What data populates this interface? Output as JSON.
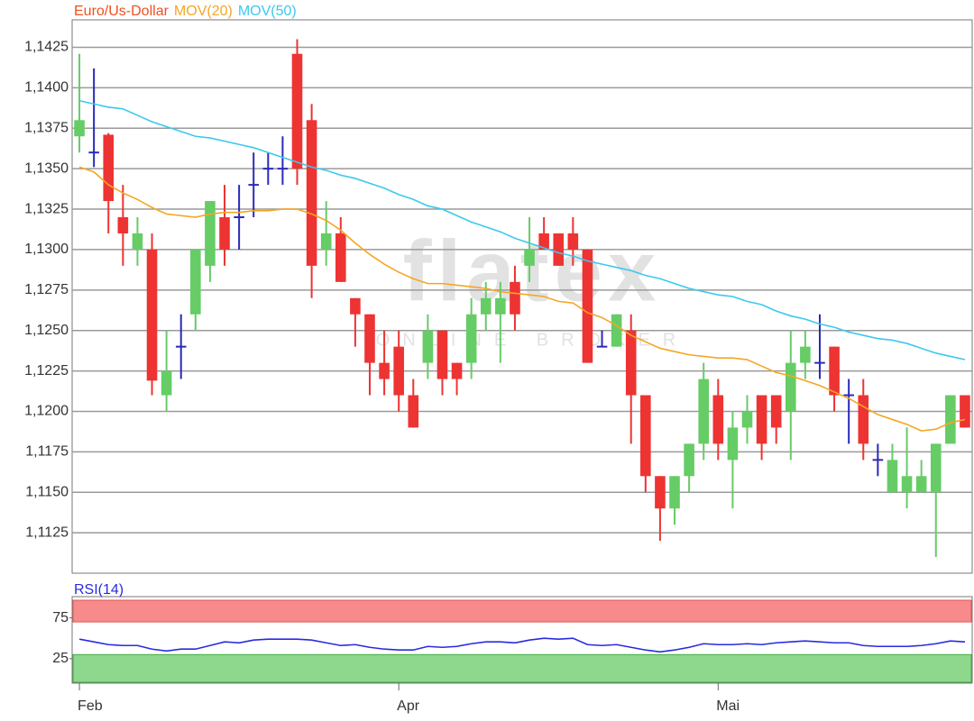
{
  "chart_data": [
    {
      "type": "candlestick",
      "categories": [
        "Feb",
        null,
        null,
        null,
        null,
        null,
        null,
        null,
        null,
        null,
        null,
        null,
        null,
        null,
        null,
        null,
        null,
        null,
        null,
        null,
        null,
        null,
        "Apr",
        null,
        null,
        null,
        null,
        null,
        null,
        null,
        null,
        null,
        null,
        null,
        null,
        null,
        null,
        null,
        null,
        null,
        null,
        null,
        null,
        null,
        "Mai",
        null,
        null,
        null,
        null,
        null,
        null,
        null,
        null,
        null,
        null,
        null,
        null,
        null,
        null,
        null,
        null,
        null
      ],
      "ohlc": {
        "name": "Euro/Us-Dollar",
        "color": "#f0501e",
        "up_color": "#66cc66",
        "down_color": "#ee3333",
        "doji_color": "#2a2ab8",
        "open": [
          1.137,
          1.136,
          1.1371,
          1.132,
          1.13,
          1.13,
          1.121,
          1.124,
          1.126,
          1.129,
          1.132,
          1.132,
          1.134,
          1.135,
          1.135,
          1.1421,
          1.138,
          1.13,
          1.131,
          1.127,
          1.126,
          1.123,
          1.124,
          1.121,
          1.123,
          1.125,
          1.123,
          1.123,
          1.126,
          1.126,
          1.128,
          1.129,
          1.131,
          1.131,
          1.131,
          1.13,
          1.124,
          1.124,
          1.125,
          1.121,
          1.116,
          1.114,
          1.116,
          1.118,
          1.121,
          1.117,
          1.119,
          1.121,
          1.121,
          1.12,
          1.123,
          1.123,
          1.124,
          1.121,
          1.121,
          1.117,
          1.115,
          1.115,
          1.115,
          1.115,
          1.118,
          1.121
        ],
        "high": [
          1.1421,
          1.1412,
          1.1372,
          1.134,
          1.132,
          1.131,
          1.125,
          1.126,
          1.13,
          1.133,
          1.134,
          1.134,
          1.136,
          1.136,
          1.137,
          1.143,
          1.139,
          1.133,
          1.132,
          1.127,
          1.126,
          1.125,
          1.125,
          1.122,
          1.126,
          1.125,
          1.123,
          1.127,
          1.128,
          1.128,
          1.129,
          1.132,
          1.132,
          1.131,
          1.132,
          1.13,
          1.125,
          1.126,
          1.126,
          1.121,
          1.116,
          1.116,
          1.118,
          1.123,
          1.122,
          1.12,
          1.121,
          1.121,
          1.121,
          1.125,
          1.125,
          1.126,
          1.124,
          1.122,
          1.122,
          1.118,
          1.118,
          1.119,
          1.117,
          1.118,
          1.121,
          1.121
        ],
        "low": [
          1.136,
          1.1351,
          1.131,
          1.129,
          1.129,
          1.121,
          1.12,
          1.122,
          1.125,
          1.128,
          1.129,
          1.13,
          1.132,
          1.134,
          1.134,
          1.134,
          1.127,
          1.129,
          1.128,
          1.124,
          1.121,
          1.121,
          1.12,
          1.119,
          1.122,
          1.121,
          1.121,
          1.122,
          1.125,
          1.123,
          1.125,
          1.128,
          1.13,
          1.129,
          1.129,
          1.123,
          1.124,
          1.124,
          1.118,
          1.115,
          1.112,
          1.113,
          1.115,
          1.117,
          1.117,
          1.114,
          1.118,
          1.117,
          1.118,
          1.117,
          1.122,
          1.122,
          1.12,
          1.118,
          1.117,
          1.116,
          1.115,
          1.114,
          1.115,
          1.111,
          1.118,
          1.119
        ],
        "close": [
          1.138,
          1.136,
          1.133,
          1.131,
          1.131,
          1.1219,
          1.1225,
          1.124,
          1.13,
          1.133,
          1.13,
          1.132,
          1.134,
          1.135,
          1.135,
          1.135,
          1.129,
          1.131,
          1.128,
          1.126,
          1.123,
          1.122,
          1.121,
          1.119,
          1.125,
          1.122,
          1.122,
          1.126,
          1.127,
          1.127,
          1.126,
          1.13,
          1.13,
          1.129,
          1.13,
          1.123,
          1.124,
          1.126,
          1.121,
          1.116,
          1.114,
          1.116,
          1.118,
          1.122,
          1.118,
          1.119,
          1.12,
          1.118,
          1.119,
          1.123,
          1.124,
          1.123,
          1.121,
          1.121,
          1.118,
          1.117,
          1.117,
          1.116,
          1.116,
          1.118,
          1.121,
          1.119
        ]
      },
      "series": [
        {
          "name": "MOV(20)",
          "color": "#f5a623",
          "values": [
            1.1351,
            1.1348,
            1.134,
            1.1335,
            1.1331,
            1.1326,
            1.1322,
            1.1321,
            1.132,
            1.1322,
            1.1323,
            1.1323,
            1.1324,
            1.1324,
            1.1325,
            1.1325,
            1.1322,
            1.1318,
            1.1312,
            1.1304,
            1.1297,
            1.1291,
            1.1286,
            1.1282,
            1.1279,
            1.1279,
            1.1278,
            1.1277,
            1.1276,
            1.1274,
            1.1273,
            1.1272,
            1.1271,
            1.1268,
            1.1267,
            1.1261,
            1.1258,
            1.1253,
            1.1247,
            1.1243,
            1.1239,
            1.1237,
            1.1235,
            1.1234,
            1.1233,
            1.1233,
            1.1232,
            1.1228,
            1.1224,
            1.1222,
            1.1219,
            1.1216,
            1.1212,
            1.1208,
            1.1203,
            1.1198,
            1.1195,
            1.1192,
            1.1188,
            1.1189,
            1.1193,
            1.1195
          ]
        },
        {
          "name": "MOV(50)",
          "color": "#3cc8ee",
          "values": [
            1.1392,
            1.139,
            1.1388,
            1.1387,
            1.1383,
            1.1379,
            1.1376,
            1.1373,
            1.137,
            1.1369,
            1.1367,
            1.1365,
            1.1363,
            1.136,
            1.1357,
            1.1354,
            1.1351,
            1.1349,
            1.1346,
            1.1344,
            1.1341,
            1.1338,
            1.1334,
            1.1331,
            1.1327,
            1.1325,
            1.1321,
            1.1317,
            1.1314,
            1.1311,
            1.1307,
            1.1304,
            1.1301,
            1.1298,
            1.1296,
            1.1293,
            1.1291,
            1.1289,
            1.1287,
            1.1284,
            1.1282,
            1.1279,
            1.1276,
            1.1274,
            1.1272,
            1.1271,
            1.1268,
            1.1266,
            1.1262,
            1.1259,
            1.1257,
            1.1254,
            1.1252,
            1.1249,
            1.1247,
            1.1245,
            1.1244,
            1.1242,
            1.1239,
            1.1236,
            1.1234,
            1.1232
          ]
        }
      ],
      "ylim": [
        1.11,
        1.1442
      ],
      "yticks": [
        {
          "value": 1.1125,
          "label": "1,1125"
        },
        {
          "value": 1.115,
          "label": "1,1150"
        },
        {
          "value": 1.1175,
          "label": "1,1175"
        },
        {
          "value": 1.12,
          "label": "1,1200"
        },
        {
          "value": 1.1225,
          "label": "1,1225"
        },
        {
          "value": 1.125,
          "label": "1,1250"
        },
        {
          "value": 1.1275,
          "label": "1,1275"
        },
        {
          "value": 1.13,
          "label": "1,1300"
        },
        {
          "value": 1.1325,
          "label": "1,1325"
        },
        {
          "value": 1.135,
          "label": "1,1350"
        },
        {
          "value": 1.1375,
          "label": "1,1375"
        },
        {
          "value": 1.14,
          "label": "1,1400"
        },
        {
          "value": 1.1425,
          "label": "1,1425"
        }
      ],
      "grid": true,
      "watermark": [
        "flatex",
        "ONLINE BROKER"
      ]
    },
    {
      "type": "line",
      "title": "RSI(14)",
      "color": "#2a2ae0",
      "values": [
        48.9,
        45.6,
        42.2,
        41.1,
        41.1,
        36.7,
        34.4,
        36.7,
        36.7,
        41.1,
        45.6,
        44.4,
        47.8,
        48.9,
        48.9,
        48.9,
        47.8,
        44.4,
        41.1,
        42.2,
        38.9,
        36.7,
        35.6,
        35.6,
        40,
        38.9,
        40,
        43.3,
        45.6,
        45.6,
        44.4,
        47.8,
        50,
        48.9,
        50,
        42.2,
        41.1,
        42.2,
        38.9,
        35.6,
        33.3,
        35.6,
        38.9,
        43.3,
        42.2,
        42.2,
        43.3,
        42.2,
        44.4,
        45.6,
        46.7,
        45.6,
        44.4,
        44.4,
        41.1,
        40,
        40,
        40,
        41.1,
        43.3,
        46.7,
        45.6
      ],
      "ylim": [
        -5,
        101
      ],
      "yticks": [
        25,
        75
      ],
      "upper_band": 70,
      "lower_band": 30,
      "upper_color": "#f78a8a",
      "lower_color": "#8ed88e"
    }
  ]
}
